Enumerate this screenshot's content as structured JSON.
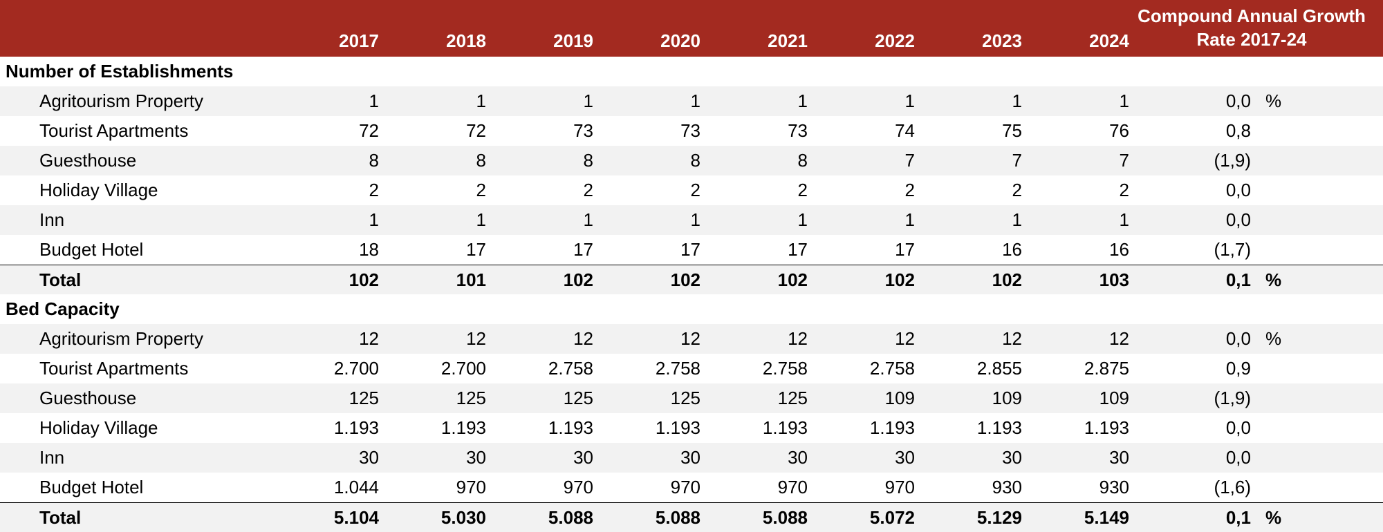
{
  "header": {
    "years": [
      "2017",
      "2018",
      "2019",
      "2020",
      "2021",
      "2022",
      "2023",
      "2024"
    ],
    "cagr_label": "Compound Annual Growth Rate 2017-24"
  },
  "sections": [
    {
      "title": "Number of Establishments",
      "rows": [
        {
          "label": "Agritourism Property",
          "values": [
            "1",
            "1",
            "1",
            "1",
            "1",
            "1",
            "1",
            "1"
          ],
          "cagr": "0,0",
          "unit": "%"
        },
        {
          "label": "Tourist Apartments",
          "values": [
            "72",
            "72",
            "73",
            "73",
            "73",
            "74",
            "75",
            "76"
          ],
          "cagr": "0,8"
        },
        {
          "label": "Guesthouse",
          "values": [
            "8",
            "8",
            "8",
            "8",
            "8",
            "7",
            "7",
            "7"
          ],
          "cagr": "(1,9)"
        },
        {
          "label": "Holiday Village",
          "values": [
            "2",
            "2",
            "2",
            "2",
            "2",
            "2",
            "2",
            "2"
          ],
          "cagr": "0,0"
        },
        {
          "label": "Inn",
          "values": [
            "1",
            "1",
            "1",
            "1",
            "1",
            "1",
            "1",
            "1"
          ],
          "cagr": "0,0"
        },
        {
          "label": "Budget Hotel",
          "values": [
            "18",
            "17",
            "17",
            "17",
            "17",
            "17",
            "16",
            "16"
          ],
          "cagr": "(1,7)"
        }
      ],
      "total": {
        "label": "Total",
        "values": [
          "102",
          "101",
          "102",
          "102",
          "102",
          "102",
          "102",
          "103"
        ],
        "cagr": "0,1",
        "unit": "%"
      }
    },
    {
      "title": "Bed Capacity",
      "rows": [
        {
          "label": "Agritourism Property",
          "values": [
            "12",
            "12",
            "12",
            "12",
            "12",
            "12",
            "12",
            "12"
          ],
          "cagr": "0,0",
          "unit": "%"
        },
        {
          "label": "Tourist Apartments",
          "values": [
            "2.700",
            "2.700",
            "2.758",
            "2.758",
            "2.758",
            "2.758",
            "2.855",
            "2.875"
          ],
          "cagr": "0,9"
        },
        {
          "label": "Guesthouse",
          "values": [
            "125",
            "125",
            "125",
            "125",
            "125",
            "109",
            "109",
            "109"
          ],
          "cagr": "(1,9)"
        },
        {
          "label": "Holiday Village",
          "values": [
            "1.193",
            "1.193",
            "1.193",
            "1.193",
            "1.193",
            "1.193",
            "1.193",
            "1.193"
          ],
          "cagr": "0,0"
        },
        {
          "label": "Inn",
          "values": [
            "30",
            "30",
            "30",
            "30",
            "30",
            "30",
            "30",
            "30"
          ],
          "cagr": "0,0"
        },
        {
          "label": "Budget Hotel",
          "values": [
            "1.044",
            "970",
            "970",
            "970",
            "970",
            "970",
            "930",
            "930"
          ],
          "cagr": "(1,6)"
        }
      ],
      "total": {
        "label": "Total",
        "values": [
          "5.104",
          "5.030",
          "5.088",
          "5.088",
          "5.088",
          "5.072",
          "5.129",
          "5.149"
        ],
        "cagr": "0,1",
        "unit": "%"
      }
    }
  ]
}
